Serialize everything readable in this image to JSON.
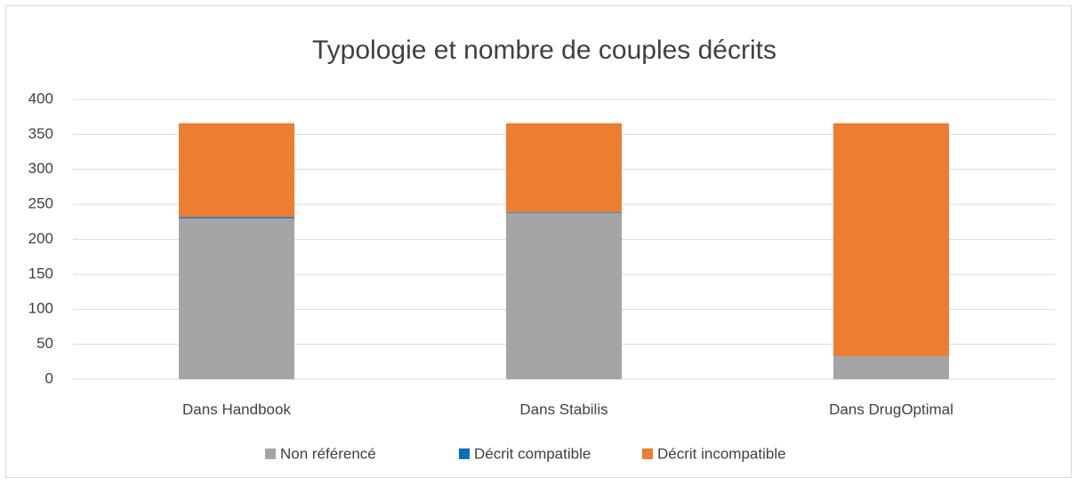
{
  "chart_data": {
    "type": "stacked_bar",
    "title": "Typologie et nombre de couples décrits",
    "categories": [
      "Dans Handbook",
      "Dans Stabilis",
      "Dans DrugOptimal"
    ],
    "series": [
      {
        "name": "Non référencé",
        "color": "#a5a5a5",
        "values": [
          230,
          238,
          33
        ]
      },
      {
        "name": "Décrit compatible",
        "color": "#0070c0",
        "values": [
          2,
          1,
          0
        ]
      },
      {
        "name": "Décrit incompatible",
        "color": "#ed7d31",
        "values": [
          134,
          127,
          333
        ]
      }
    ],
    "ylim": [
      0,
      400
    ],
    "yticks": [
      0,
      50,
      100,
      150,
      200,
      250,
      300,
      350,
      400
    ],
    "grid": true,
    "legend": "bottom"
  }
}
